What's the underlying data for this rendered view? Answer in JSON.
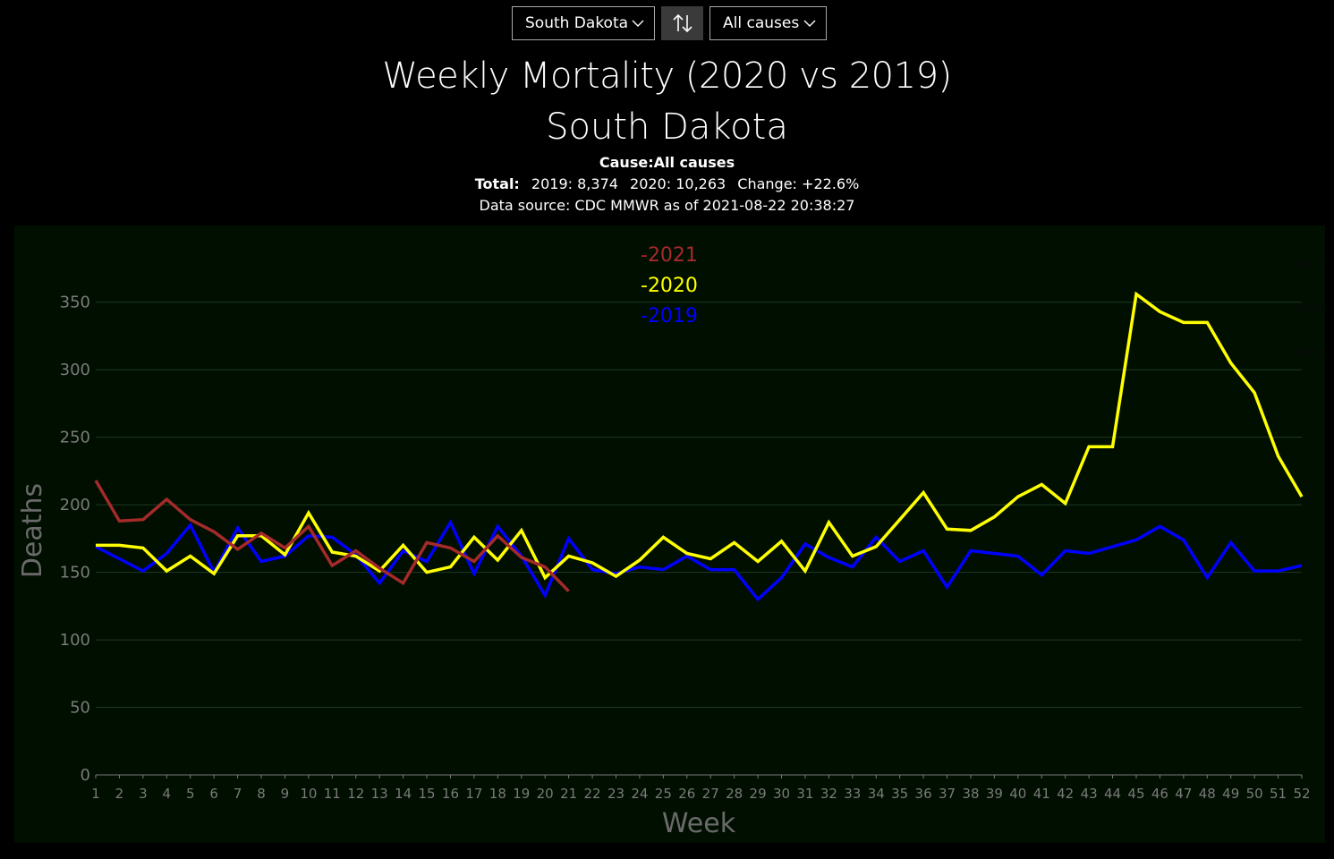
{
  "controls": {
    "state_value": "South Dakota",
    "cause_value": "All causes",
    "swap_icon": "swap-vertical-arrows-icon",
    "dropdown_icon": "chevron-down-icon"
  },
  "header": {
    "title": "Weekly Mortality (2020 vs 2019)",
    "subtitle": "South Dakota",
    "cause_label": "Cause:",
    "cause_value": "All causes",
    "totals_label": "Total:",
    "total_2019": "2019:  8,374",
    "total_2020": "2020:  10,263",
    "change": "Change:  +22.6%",
    "source": "Data source: CDC MMWR as of 2021-08-22 20:38:27"
  },
  "colors": {
    "background": "#000000",
    "plot_background": "#000f00",
    "grid": "#1f3a1f",
    "axis_text": "#7a7a7a",
    "series_2021": "#a52a2a",
    "series_2020": "#ffff00",
    "series_2019": "#0000ff"
  },
  "chart_data": {
    "type": "line",
    "xlabel": "Week",
    "ylabel": "Deaths",
    "ylim": [
      0,
      375
    ],
    "yticks": [
      0,
      50,
      100,
      150,
      200,
      250,
      300,
      350
    ],
    "xlim": [
      1,
      52
    ],
    "grid": true,
    "legend_position": "top-center",
    "series": [
      {
        "name": "-2021",
        "color": "#a52a2a",
        "x": [
          1,
          2,
          3,
          4,
          5,
          6,
          7,
          8,
          9,
          10,
          11,
          12,
          13,
          14,
          15,
          16,
          17,
          18,
          19,
          20,
          21
        ],
        "values": [
          218,
          188,
          189,
          204,
          189,
          180,
          167,
          179,
          168,
          184,
          155,
          166,
          153,
          142,
          172,
          168,
          158,
          177,
          161,
          154,
          136
        ]
      },
      {
        "name": "-2020",
        "color": "#ffff00",
        "x": [
          1,
          2,
          3,
          4,
          5,
          6,
          7,
          8,
          9,
          10,
          11,
          12,
          13,
          14,
          15,
          16,
          17,
          18,
          19,
          20,
          21,
          22,
          23,
          24,
          25,
          26,
          27,
          28,
          29,
          30,
          31,
          32,
          33,
          34,
          35,
          36,
          37,
          38,
          39,
          40,
          41,
          42,
          43,
          44,
          45,
          46,
          47,
          48,
          49,
          50,
          51,
          52
        ],
        "values": [
          170,
          170,
          168,
          151,
          162,
          149,
          177,
          177,
          163,
          194,
          165,
          162,
          151,
          170,
          150,
          154,
          176,
          159,
          181,
          146,
          162,
          157,
          147,
          159,
          176,
          164,
          160,
          172,
          158,
          173,
          151,
          187,
          162,
          169,
          189,
          209,
          182,
          181,
          191,
          206,
          215,
          201,
          243,
          243,
          356,
          343,
          335,
          335,
          305,
          283,
          236,
          206
        ]
      },
      {
        "name": "-2019",
        "color": "#0000ff",
        "x": [
          1,
          2,
          3,
          4,
          5,
          6,
          7,
          8,
          9,
          10,
          11,
          12,
          13,
          14,
          15,
          16,
          17,
          18,
          19,
          20,
          21,
          22,
          23,
          24,
          25,
          26,
          27,
          28,
          29,
          30,
          31,
          32,
          33,
          34,
          35,
          36,
          37,
          38,
          39,
          40,
          41,
          42,
          43,
          44,
          45,
          46,
          47,
          48,
          49,
          50,
          51,
          52
        ],
        "values": [
          169,
          160,
          151,
          164,
          185,
          150,
          183,
          158,
          162,
          177,
          176,
          163,
          142,
          166,
          158,
          187,
          149,
          184,
          162,
          133,
          175,
          152,
          149,
          154,
          152,
          162,
          152,
          152,
          130,
          146,
          171,
          161,
          154,
          176,
          158,
          166,
          139,
          166,
          164,
          162,
          148,
          166,
          164,
          169,
          174,
          184,
          174,
          146,
          172,
          151,
          151,
          155
        ]
      }
    ],
    "edge_labels": [
      "2019",
      "2020",
      "2020"
    ]
  }
}
